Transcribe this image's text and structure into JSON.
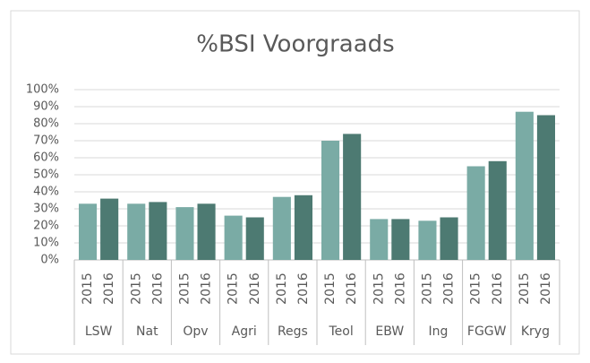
{
  "chart_data": {
    "type": "bar",
    "title": "%BSI Voorgraads",
    "categories": [
      "LSW",
      "Nat",
      "Opv",
      "Agri",
      "Regs",
      "Teol",
      "EBW",
      "Ing",
      "FGGW",
      "Kryg"
    ],
    "series": [
      {
        "name": "2015",
        "color": "#7aaba5",
        "values": [
          33,
          33,
          31,
          26,
          37,
          70,
          24,
          23,
          55,
          87
        ]
      },
      {
        "name": "2016",
        "color": "#4d7a72",
        "values": [
          36,
          34,
          33,
          25,
          38,
          74,
          24,
          25,
          58,
          85
        ]
      }
    ],
    "ylim": [
      0,
      100
    ],
    "yticks": [
      {
        "value": 0,
        "label": "0%"
      },
      {
        "value": 10,
        "label": "10%"
      },
      {
        "value": 20,
        "label": "20%"
      },
      {
        "value": 30,
        "label": "30%"
      },
      {
        "value": 40,
        "label": "40%"
      },
      {
        "value": 50,
        "label": "50%"
      },
      {
        "value": 60,
        "label": "60%"
      },
      {
        "value": 70,
        "label": "70%"
      },
      {
        "value": 80,
        "label": "80%"
      },
      {
        "value": 90,
        "label": "90%"
      },
      {
        "value": 100,
        "label": "100%"
      }
    ],
    "grid": true
  }
}
